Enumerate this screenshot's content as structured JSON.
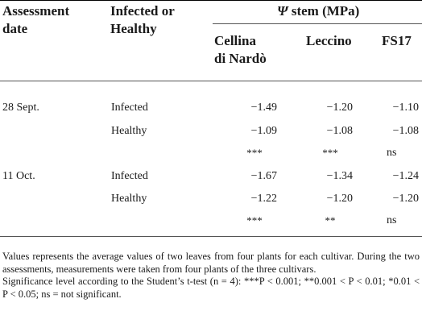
{
  "headers": {
    "assessment_date": [
      "Assessment",
      "date"
    ],
    "infected_or_healthy": [
      "Infected or",
      "Healthy"
    ],
    "psi_symbol": "Ψ",
    "psi_label": "stem (MPa)",
    "cultivars": [
      [
        "Cellina",
        "di Nardò"
      ],
      [
        "Leccino"
      ],
      [
        "FS17"
      ]
    ]
  },
  "groups": [
    {
      "date": "28 Sept.",
      "rows": [
        {
          "status": "Infected",
          "values": [
            "−1.49",
            "−1.20",
            "−1.10"
          ]
        },
        {
          "status": "Healthy",
          "values": [
            "−1.09",
            "−1.08",
            "−1.08"
          ]
        }
      ],
      "significance": [
        "***",
        "***",
        "ns"
      ]
    },
    {
      "date": "11 Oct.",
      "rows": [
        {
          "status": "Infected",
          "values": [
            "−1.67",
            "−1.34",
            "−1.24"
          ]
        },
        {
          "status": "Healthy",
          "values": [
            "−1.22",
            "−1.20",
            "−1.20"
          ]
        }
      ],
      "significance": [
        "***",
        "**",
        "ns"
      ]
    }
  ],
  "footnotes": [
    "Values represents the average values of two leaves from four plants for each cultivar. During the two assessments, measurements were taken from four plants of the three cultivars.",
    "Significance level according to the Student’s t-test (n = 4): ***P < 0.001; **0.001 < P < 0.01; *0.01 < P < 0.05; ns = not significant."
  ]
}
